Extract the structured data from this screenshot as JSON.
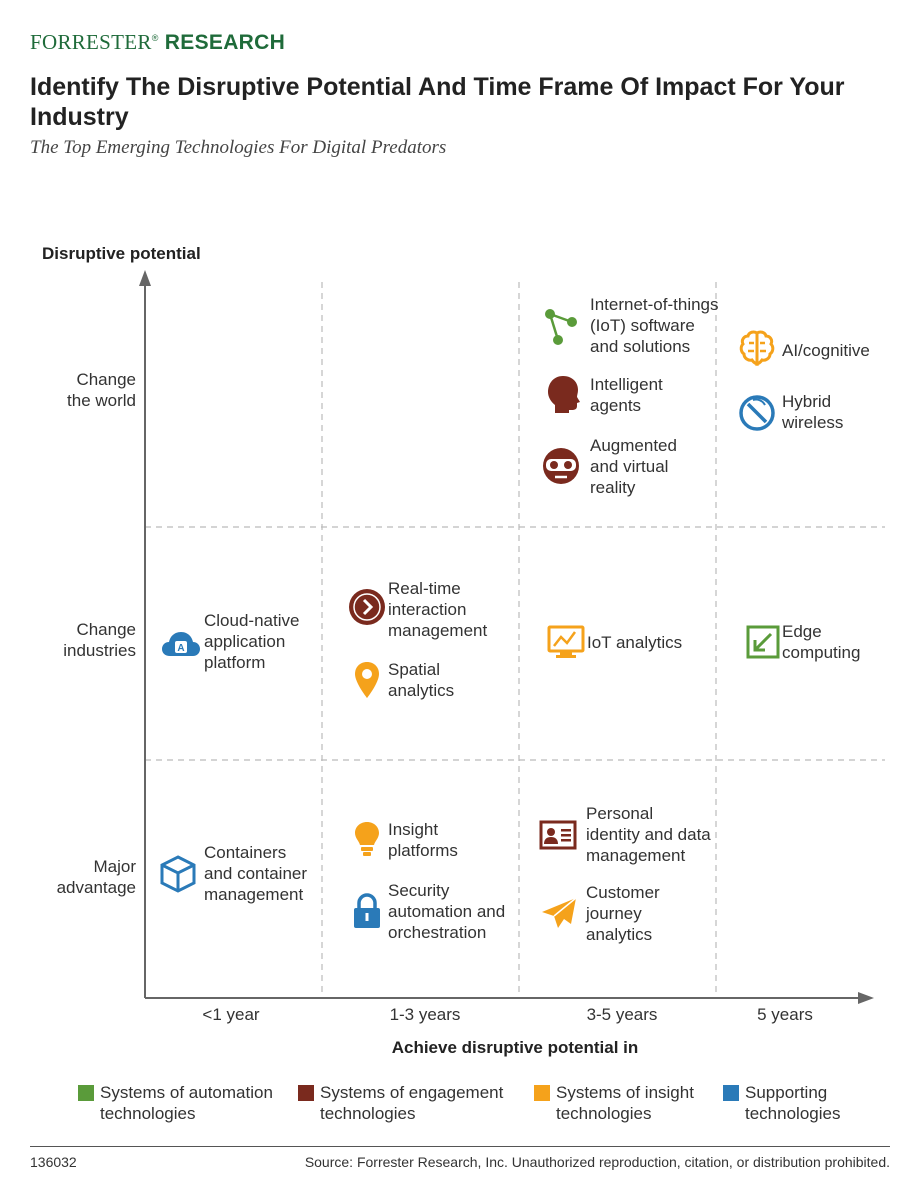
{
  "brand": {
    "name_part1": "FORRESTER",
    "reg": "®",
    "name_part2": " RESEARCH"
  },
  "title": "Identify The Disruptive Potential And Time Frame Of Impact For Your Industry",
  "subtitle": "The Top Emerging Technologies For Digital Predators",
  "colors": {
    "automation": "#5a9b3a",
    "engagement": "#7a2a1e",
    "insight": "#f5a21b",
    "supporting": "#2a7ab8"
  },
  "chart_data": {
    "type": "matrix",
    "ylabel": "Disruptive potential",
    "xlabel": "Achieve disruptive potential in",
    "rows": [
      "Change\nthe world",
      "Change\nindustries",
      "Major\nadvantage"
    ],
    "columns": [
      "<1 year",
      "1-3 years",
      "3-5 years",
      "5 years"
    ],
    "items": [
      {
        "label": "Internet-of-things\n(IoT) software\nand solutions",
        "row": 0,
        "col": 2,
        "category": "automation",
        "icon": "network-nodes-icon"
      },
      {
        "label": "Intelligent\nagents",
        "row": 0,
        "col": 2,
        "category": "engagement",
        "icon": "human-head-icon"
      },
      {
        "label": "Augmented\nand virtual\nreality",
        "row": 0,
        "col": 2,
        "category": "engagement",
        "icon": "vr-headset-icon"
      },
      {
        "label": "AI/cognitive",
        "row": 0,
        "col": 3,
        "category": "insight",
        "icon": "brain-icon"
      },
      {
        "label": "Hybrid\nwireless",
        "row": 0,
        "col": 3,
        "category": "supporting",
        "icon": "wireless-antenna-icon"
      },
      {
        "label": "Cloud-native\napplication\nplatform",
        "row": 1,
        "col": 0,
        "category": "supporting",
        "icon": "cloud-app-icon"
      },
      {
        "label": "Real-time\ninteraction\nmanagement",
        "row": 1,
        "col": 1,
        "category": "engagement",
        "icon": "chevron-circle-icon"
      },
      {
        "label": "Spatial\nanalytics",
        "row": 1,
        "col": 1,
        "category": "insight",
        "icon": "map-pin-icon"
      },
      {
        "label": "IoT analytics",
        "row": 1,
        "col": 2,
        "category": "insight",
        "icon": "monitor-chart-icon"
      },
      {
        "label": "Edge\ncomputing",
        "row": 1,
        "col": 3,
        "category": "automation",
        "icon": "edge-arrow-icon"
      },
      {
        "label": "Containers\nand container\nmanagement",
        "row": 2,
        "col": 0,
        "category": "supporting",
        "icon": "cube-box-icon"
      },
      {
        "label": "Insight\nplatforms",
        "row": 2,
        "col": 1,
        "category": "insight",
        "icon": "lightbulb-icon"
      },
      {
        "label": "Security\nautomation and\norchestration",
        "row": 2,
        "col": 1,
        "category": "supporting",
        "icon": "padlock-icon"
      },
      {
        "label": "Personal\nidentity and data\nmanagement",
        "row": 2,
        "col": 2,
        "category": "engagement",
        "icon": "id-card-icon"
      },
      {
        "label": "Customer\njourney\nanalytics",
        "row": 2,
        "col": 2,
        "category": "insight",
        "icon": "paper-plane-icon"
      }
    ],
    "legend": [
      {
        "category": "automation",
        "label": "Systems of automation\ntechnologies"
      },
      {
        "category": "engagement",
        "label": "Systems of engagement\ntechnologies"
      },
      {
        "category": "insight",
        "label": "Systems of insight\ntechnologies"
      },
      {
        "category": "supporting",
        "label": "Supporting\ntechnologies"
      }
    ]
  },
  "footer": {
    "id": "136032",
    "source": "Source: Forrester Research, Inc. Unauthorized reproduction, citation, or distribution prohibited."
  }
}
